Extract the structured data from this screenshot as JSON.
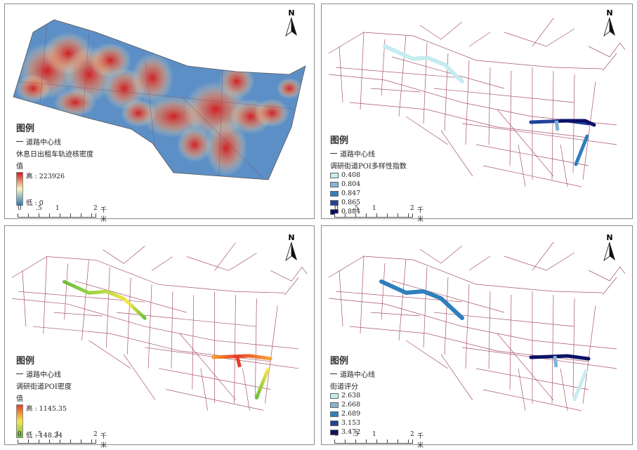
{
  "road_color": "#a8546a",
  "north_label": "N",
  "legend_title": "图例",
  "road_label": "道路中心线",
  "scale": {
    "ticks": [
      "0",
      ".5",
      "1",
      "2"
    ],
    "unit": "千米"
  },
  "panels": [
    {
      "id": "kernel-density",
      "layer_title": "休息日出租车轨迹核密度",
      "value_label": "值",
      "high_label": "高 : 223926",
      "low_label": "低 : 0",
      "ramp_colors": [
        "#d7191c",
        "#f7f7c0",
        "#2c7bb6"
      ]
    },
    {
      "id": "poi-diversity",
      "layer_title": "调研街道POI多样性指数",
      "classes": [
        {
          "label": "0.408",
          "color": "#c6ecf0"
        },
        {
          "label": "0.804",
          "color": "#7fb5d6"
        },
        {
          "label": "0.847",
          "color": "#2f7fbd"
        },
        {
          "label": "0.865",
          "color": "#21429b"
        },
        {
          "label": "0.884",
          "color": "#0b1066"
        }
      ]
    },
    {
      "id": "poi-density",
      "layer_title": "调研街道POI密度",
      "value_label": "值",
      "high_label": "高 : 1145.35",
      "low_label": "低 : 148.24",
      "ramp_colors": [
        "#e53e27",
        "#f6e64a",
        "#6bbf3c"
      ]
    },
    {
      "id": "street-score",
      "layer_title": "街道评分",
      "classes": [
        {
          "label": "2.638",
          "color": "#c6ecf0"
        },
        {
          "label": "2.668",
          "color": "#7fb5d6"
        },
        {
          "label": "2.689",
          "color": "#2f7fbd"
        },
        {
          "label": "3.153",
          "color": "#21429b"
        },
        {
          "label": "3.472",
          "color": "#0b1066"
        }
      ]
    }
  ]
}
